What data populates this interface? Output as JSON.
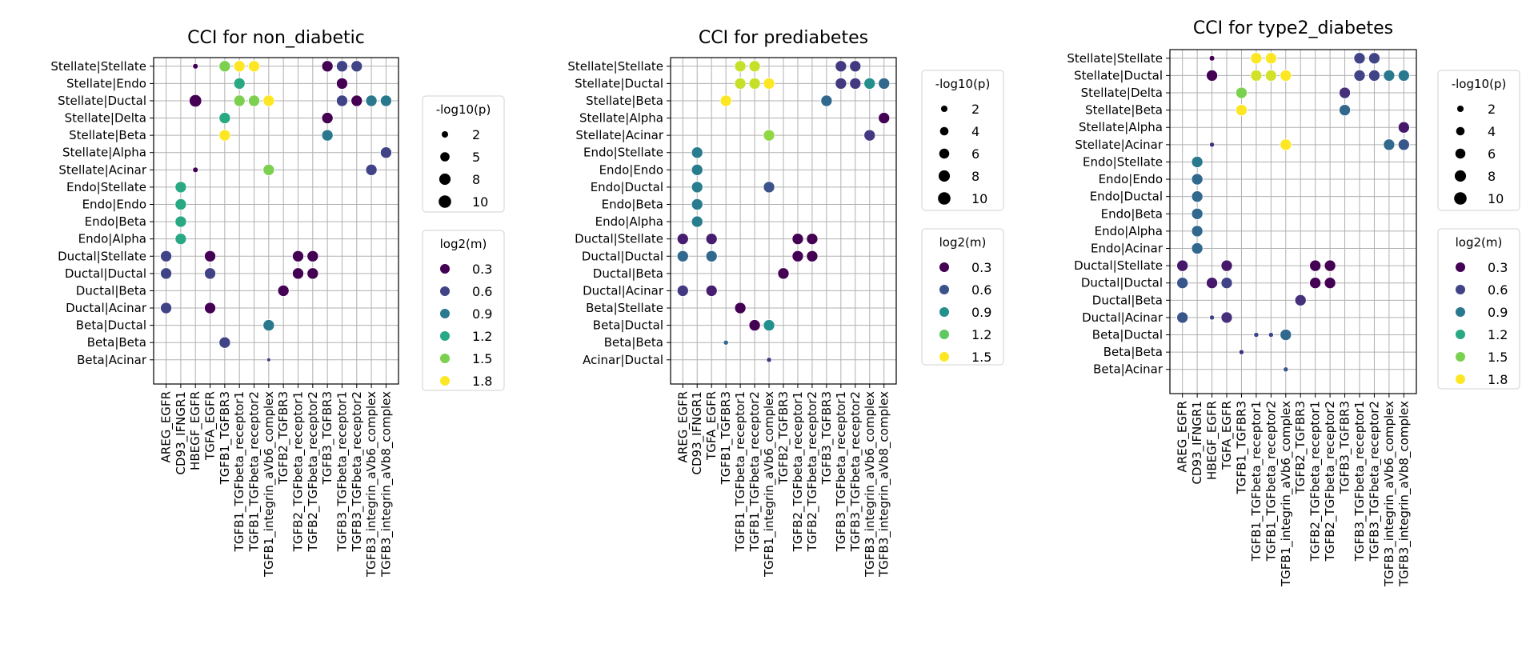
{
  "chart_data": [
    {
      "type": "scatter",
      "title": "CCI for non_diabetic",
      "rows": [
        "Stellate|Stellate",
        "Stellate|Endo",
        "Stellate|Ductal",
        "Stellate|Delta",
        "Stellate|Beta",
        "Stellate|Alpha",
        "Stellate|Acinar",
        "Endo|Stellate",
        "Endo|Endo",
        "Endo|Beta",
        "Endo|Alpha",
        "Ductal|Stellate",
        "Ductal|Ductal",
        "Ductal|Beta",
        "Ductal|Acinar",
        "Beta|Ductal",
        "Beta|Beta",
        "Beta|Acinar"
      ],
      "columns": [
        "AREG_EGFR",
        "CD93_IFNGR1",
        "HBEGF_EGFR",
        "TGFA_EGFR",
        "TGFB1_TGFBR3",
        "TGFB1_TGFbeta_receptor1",
        "TGFB1_TGFbeta_receptor2",
        "TGFB1_integrin_aVb6_complex",
        "TGFB2_TGFBR3",
        "TGFB2_TGFbeta_receptor1",
        "TGFB2_TGFbeta_receptor2",
        "TGFB3_TGFBR3",
        "TGFB3_TGFbeta_receptor1",
        "TGFB3_TGFbeta_receptor2",
        "TGFB3_integrin_aVb6_complex",
        "TGFB3_integrin_aVb8_complex"
      ],
      "points": [
        [
          0,
          2,
          1.3,
          0.3
        ],
        [
          0,
          4,
          8,
          1.5
        ],
        [
          0,
          5,
          8,
          1.8
        ],
        [
          0,
          6,
          8,
          1.8
        ],
        [
          0,
          11,
          8,
          0.3
        ],
        [
          0,
          12,
          8,
          0.6
        ],
        [
          0,
          13,
          8,
          0.6
        ],
        [
          1,
          5,
          8,
          1.2
        ],
        [
          1,
          12,
          8,
          0.3
        ],
        [
          2,
          2,
          10,
          0.3
        ],
        [
          2,
          5,
          8,
          1.5
        ],
        [
          2,
          6,
          8,
          1.5
        ],
        [
          2,
          7,
          8,
          1.8
        ],
        [
          2,
          12,
          8,
          0.6
        ],
        [
          2,
          13,
          8,
          0.3
        ],
        [
          2,
          14,
          8,
          0.9
        ],
        [
          2,
          15,
          8,
          0.9
        ],
        [
          3,
          4,
          8,
          1.2
        ],
        [
          3,
          11,
          8,
          0.3
        ],
        [
          4,
          4,
          8,
          1.8
        ],
        [
          4,
          11,
          8,
          0.9
        ],
        [
          5,
          15,
          8,
          0.6
        ],
        [
          6,
          2,
          1.3,
          0.3
        ],
        [
          6,
          7,
          8,
          1.5
        ],
        [
          6,
          14,
          8,
          0.6
        ],
        [
          7,
          1,
          8,
          1.2
        ],
        [
          8,
          1,
          8,
          1.2
        ],
        [
          9,
          1,
          8,
          1.2
        ],
        [
          10,
          1,
          8,
          1.2
        ],
        [
          11,
          0,
          8,
          0.6
        ],
        [
          11,
          3,
          8,
          0.3
        ],
        [
          11,
          9,
          8,
          0.3
        ],
        [
          11,
          10,
          8,
          0.3
        ],
        [
          12,
          0,
          8,
          0.6
        ],
        [
          12,
          3,
          8,
          0.6
        ],
        [
          12,
          9,
          8,
          0.3
        ],
        [
          12,
          10,
          8,
          0.3
        ],
        [
          13,
          8,
          8,
          0.3
        ],
        [
          14,
          0,
          8,
          0.6
        ],
        [
          14,
          3,
          8,
          0.3
        ],
        [
          15,
          7,
          8,
          0.9
        ],
        [
          16,
          4,
          8,
          0.6
        ],
        [
          17,
          7,
          0.5,
          0.6
        ]
      ],
      "size_legend": {
        "title": "-log10(p)",
        "values": [
          2,
          5,
          8,
          10
        ]
      },
      "color_legend": {
        "title": "log2(m)",
        "values": [
          0.3,
          0.6,
          0.9,
          1.2,
          1.5,
          1.8
        ]
      }
    },
    {
      "type": "scatter",
      "title": "CCI for prediabetes",
      "rows": [
        "Stellate|Stellate",
        "Stellate|Ductal",
        "Stellate|Beta",
        "Stellate|Alpha",
        "Stellate|Acinar",
        "Endo|Stellate",
        "Endo|Endo",
        "Endo|Ductal",
        "Endo|Beta",
        "Endo|Alpha",
        "Ductal|Stellate",
        "Ductal|Ductal",
        "Ductal|Beta",
        "Ductal|Acinar",
        "Beta|Stellate",
        "Beta|Ductal",
        "Beta|Beta",
        "Acinar|Ductal"
      ],
      "columns": [
        "AREG_EGFR",
        "CD93_IFNGR1",
        "TGFA_EGFR",
        "TGFB1_TGFBR3",
        "TGFB1_TGFbeta_receptor1",
        "TGFB1_TGFbeta_receptor2",
        "TGFB1_integrin_aVb6_complex",
        "TGFB2_TGFBR3",
        "TGFB2_TGFbeta_receptor1",
        "TGFB2_TGFbeta_receptor2",
        "TGFB3_TGFBR3",
        "TGFB3_TGFbeta_receptor1",
        "TGFB3_TGFbeta_receptor2",
        "TGFB3_integrin_aVb6_complex",
        "TGFB3_integrin_aVb8_complex"
      ],
      "points": [
        [
          0,
          4,
          8,
          1.4
        ],
        [
          0,
          5,
          8,
          1.4
        ],
        [
          0,
          11,
          8,
          0.5
        ],
        [
          0,
          12,
          8,
          0.5
        ],
        [
          1,
          4,
          8,
          1.4
        ],
        [
          1,
          5,
          8,
          1.4
        ],
        [
          1,
          6,
          8,
          1.6
        ],
        [
          1,
          11,
          8,
          0.5
        ],
        [
          1,
          12,
          8,
          0.5
        ],
        [
          1,
          13,
          8,
          0.9
        ],
        [
          1,
          14,
          8,
          0.7
        ],
        [
          2,
          3,
          8,
          1.6
        ],
        [
          2,
          10,
          8,
          0.7
        ],
        [
          3,
          14,
          8,
          0.3
        ],
        [
          4,
          6,
          8,
          1.3
        ],
        [
          4,
          13,
          8,
          0.5
        ],
        [
          5,
          1,
          8,
          0.8
        ],
        [
          6,
          1,
          8,
          0.8
        ],
        [
          7,
          1,
          8,
          0.8
        ],
        [
          7,
          6,
          8,
          0.6
        ],
        [
          8,
          1,
          8,
          0.8
        ],
        [
          9,
          1,
          8,
          0.8
        ],
        [
          10,
          0,
          8,
          0.4
        ],
        [
          10,
          2,
          8,
          0.4
        ],
        [
          10,
          8,
          8,
          0.3
        ],
        [
          10,
          9,
          8,
          0.3
        ],
        [
          11,
          0,
          8,
          0.7
        ],
        [
          11,
          2,
          8,
          0.7
        ],
        [
          11,
          8,
          8,
          0.3
        ],
        [
          11,
          9,
          8,
          0.3
        ],
        [
          12,
          7,
          8,
          0.3
        ],
        [
          13,
          0,
          8,
          0.5
        ],
        [
          13,
          2,
          8,
          0.4
        ],
        [
          14,
          4,
          8,
          0.3
        ],
        [
          15,
          5,
          8,
          0.3
        ],
        [
          15,
          6,
          8,
          0.9
        ],
        [
          16,
          3,
          1,
          0.7
        ],
        [
          17,
          6,
          1,
          0.5
        ]
      ],
      "size_legend": {
        "title": "-log10(p)",
        "values": [
          2,
          4,
          6,
          8,
          10
        ]
      },
      "color_legend": {
        "title": "log2(m)",
        "values": [
          0.3,
          0.6,
          0.9,
          1.2,
          1.5
        ]
      }
    },
    {
      "type": "scatter",
      "title": "CCI for type2_diabetes",
      "rows": [
        "Stellate|Stellate",
        "Stellate|Ductal",
        "Stellate|Delta",
        "Stellate|Beta",
        "Stellate|Alpha",
        "Stellate|Acinar",
        "Endo|Stellate",
        "Endo|Endo",
        "Endo|Ductal",
        "Endo|Beta",
        "Endo|Alpha",
        "Endo|Acinar",
        "Ductal|Stellate",
        "Ductal|Ductal",
        "Ductal|Beta",
        "Ductal|Acinar",
        "Beta|Ductal",
        "Beta|Beta",
        "Beta|Acinar"
      ],
      "columns": [
        "AREG_EGFR",
        "CD93_IFNGR1",
        "HBEGF_EGFR",
        "TGFA_EGFR",
        "TGFB1_TGFBR3",
        "TGFB1_TGFbeta_receptor1",
        "TGFB1_TGFbeta_receptor2",
        "TGFB1_integrin_aVb6_complex",
        "TGFB2_TGFBR3",
        "TGFB2_TGFbeta_receptor1",
        "TGFB2_TGFbeta_receptor2",
        "TGFB3_TGFBR3",
        "TGFB3_TGFbeta_receptor1",
        "TGFB3_TGFbeta_receptor2",
        "TGFB3_integrin_aVb6_complex",
        "TGFB3_integrin_aVb8_complex"
      ],
      "points": [
        [
          0,
          2,
          1.3,
          0.3
        ],
        [
          0,
          5,
          8,
          1.8
        ],
        [
          0,
          6,
          8,
          1.8
        ],
        [
          0,
          12,
          8,
          0.6
        ],
        [
          0,
          13,
          8,
          0.6
        ],
        [
          1,
          2,
          8,
          0.3
        ],
        [
          1,
          5,
          8,
          1.7
        ],
        [
          1,
          6,
          8,
          1.7
        ],
        [
          1,
          7,
          8,
          1.9
        ],
        [
          1,
          12,
          8,
          0.6
        ],
        [
          1,
          13,
          8,
          0.6
        ],
        [
          1,
          14,
          8,
          0.9
        ],
        [
          1,
          15,
          8,
          0.9
        ],
        [
          2,
          4,
          8,
          1.5
        ],
        [
          2,
          11,
          8,
          0.5
        ],
        [
          3,
          4,
          8,
          1.9
        ],
        [
          3,
          11,
          8,
          0.8
        ],
        [
          4,
          15,
          8,
          0.4
        ],
        [
          5,
          2,
          1,
          0.5
        ],
        [
          5,
          7,
          8,
          1.9
        ],
        [
          5,
          14,
          8,
          0.8
        ],
        [
          5,
          15,
          8,
          0.7
        ],
        [
          6,
          1,
          8,
          0.9
        ],
        [
          7,
          1,
          8,
          0.8
        ],
        [
          8,
          1,
          8,
          0.8
        ],
        [
          9,
          1,
          8,
          0.8
        ],
        [
          10,
          1,
          8,
          0.8
        ],
        [
          11,
          1,
          8,
          0.8
        ],
        [
          12,
          0,
          8,
          0.4
        ],
        [
          12,
          3,
          8,
          0.4
        ],
        [
          12,
          9,
          8,
          0.3
        ],
        [
          12,
          10,
          8,
          0.3
        ],
        [
          13,
          0,
          8,
          0.7
        ],
        [
          13,
          2,
          8,
          0.4
        ],
        [
          13,
          3,
          8,
          0.6
        ],
        [
          13,
          9,
          8,
          0.3
        ],
        [
          13,
          10,
          8,
          0.3
        ],
        [
          14,
          8,
          8,
          0.5
        ],
        [
          15,
          0,
          8,
          0.7
        ],
        [
          15,
          2,
          1,
          0.6
        ],
        [
          15,
          3,
          8,
          0.5
        ],
        [
          16,
          5,
          1,
          0.6
        ],
        [
          16,
          6,
          1,
          0.6
        ],
        [
          16,
          7,
          8,
          0.8
        ],
        [
          17,
          4,
          1,
          0.5
        ],
        [
          18,
          7,
          1,
          0.7
        ]
      ],
      "size_legend": {
        "title": "-log10(p)",
        "values": [
          2,
          4,
          6,
          8,
          10
        ]
      },
      "color_legend": {
        "title": "log2(m)",
        "values": [
          0.3,
          0.6,
          0.9,
          1.2,
          1.5,
          1.8
        ]
      }
    }
  ]
}
